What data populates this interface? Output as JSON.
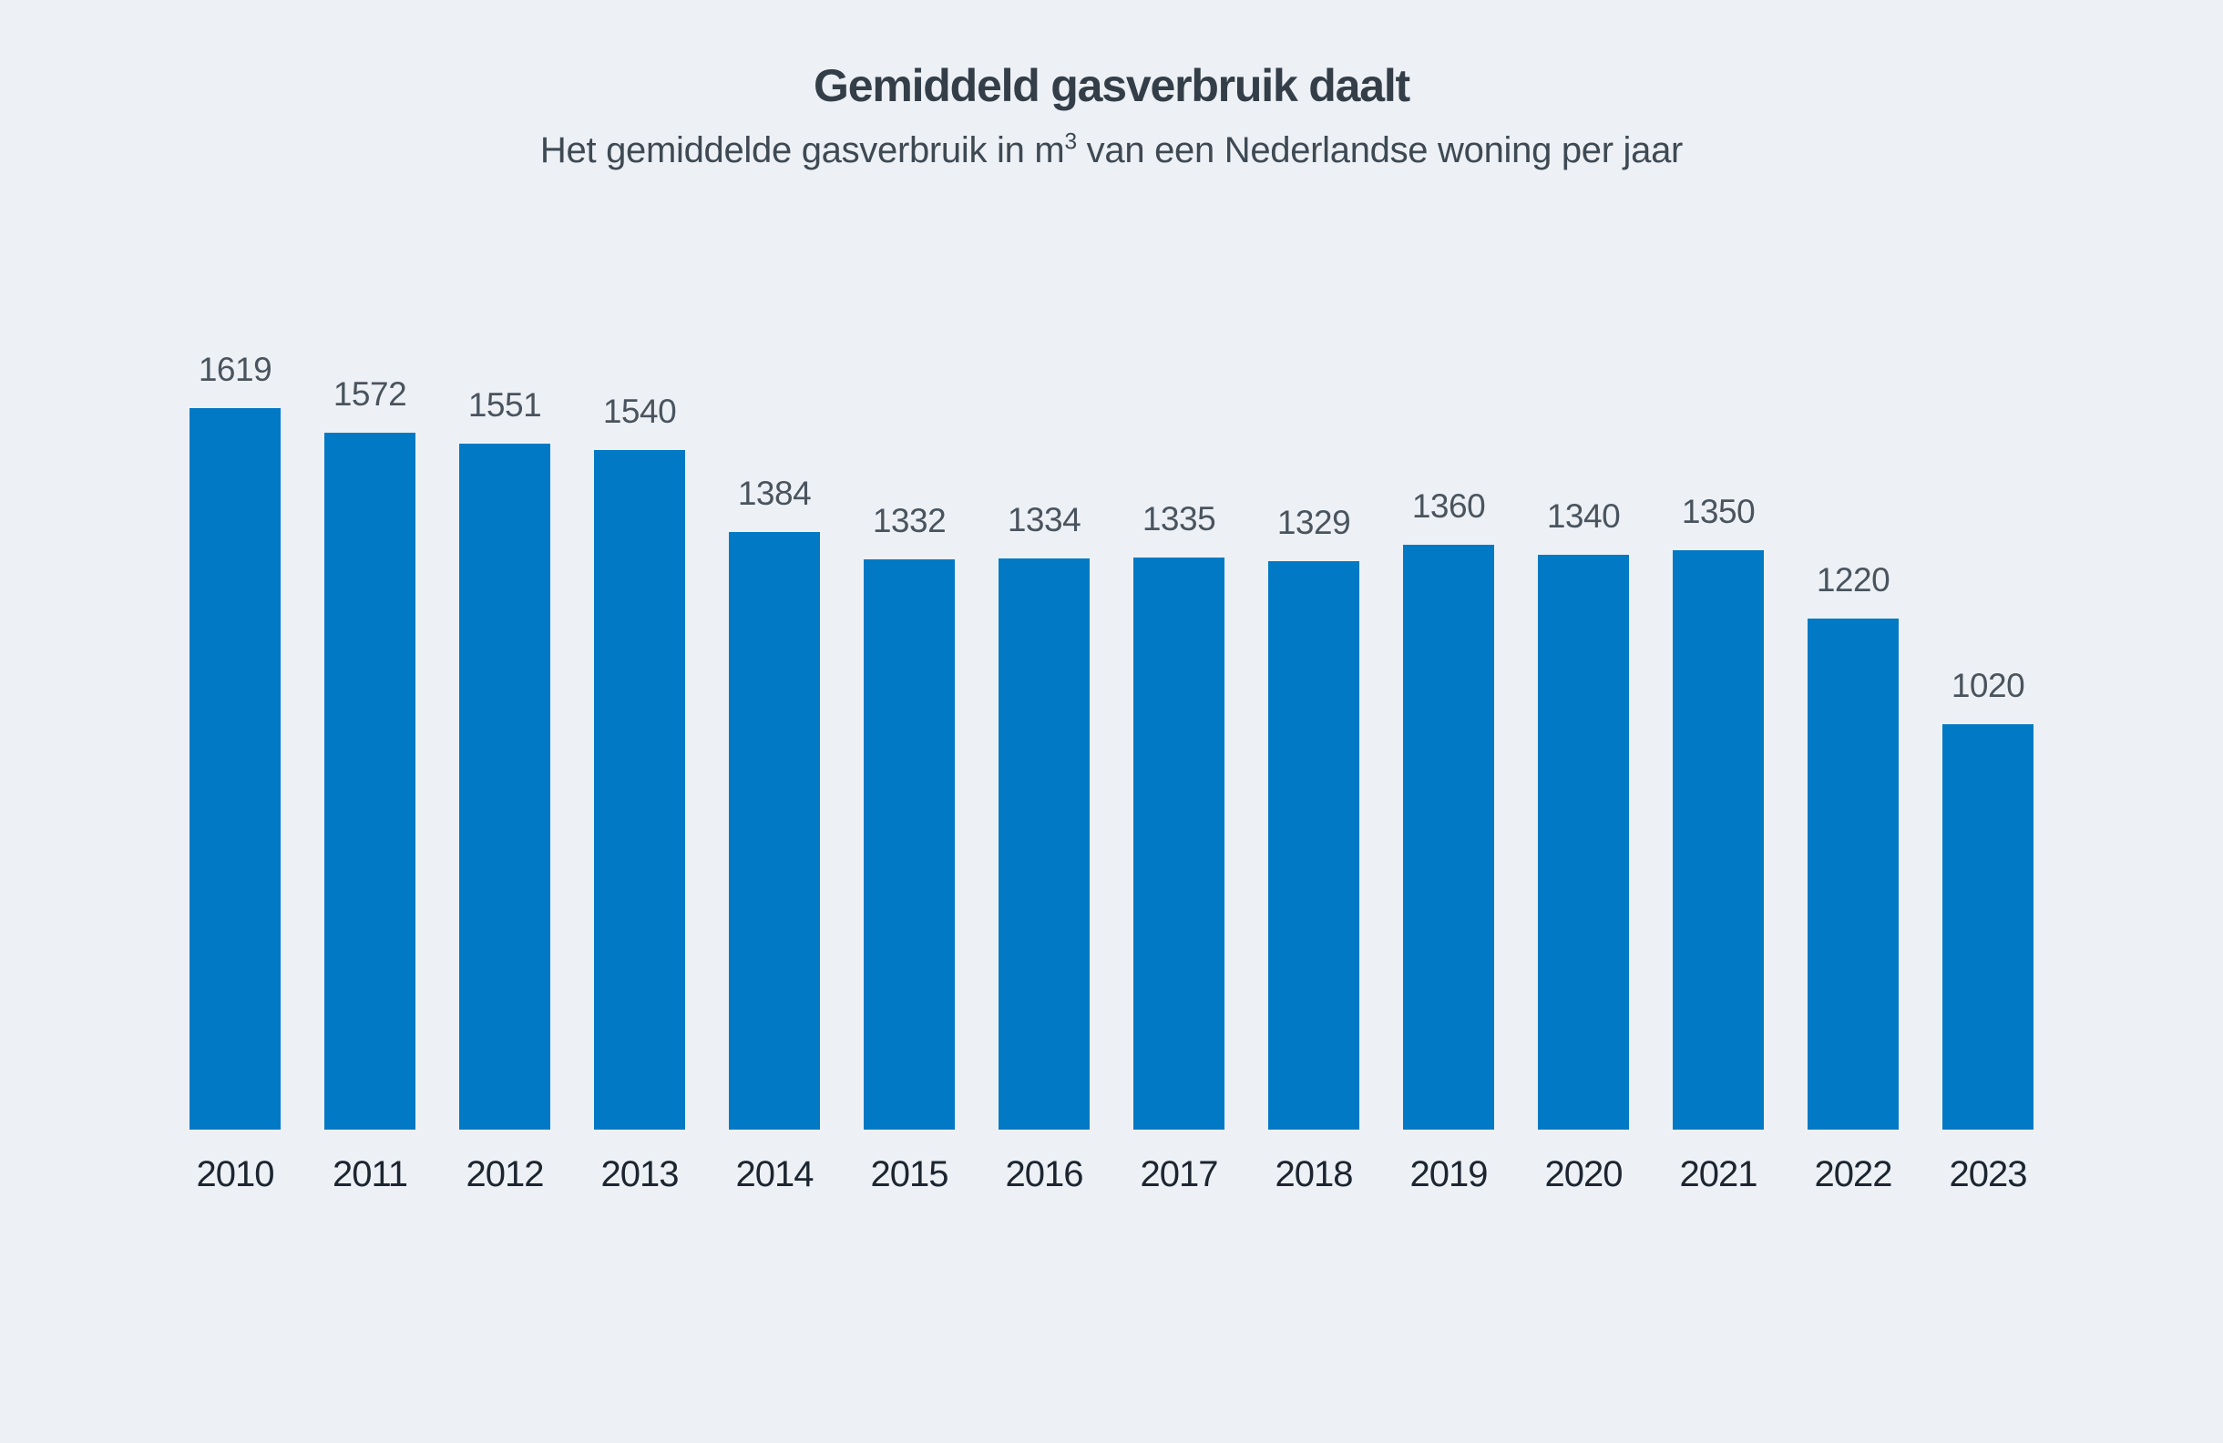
{
  "page": {
    "background": "#edf1f6",
    "title": "Gemiddeld gasverbruik daalt",
    "subtitle_prefix": "Het gemiddelde gasverbruik in m",
    "subtitle_sup": "3",
    "subtitle_suffix": " van een Nederlandse woning per jaar"
  },
  "chart_data": {
    "type": "bar",
    "title": "Gemiddeld gasverbruik daalt",
    "subtitle": "Het gemiddelde gasverbruik in m³ van een Nederlandse woning per jaar",
    "categories": [
      "2010",
      "2011",
      "2012",
      "2013",
      "2014",
      "2015",
      "2016",
      "2017",
      "2018",
      "2019",
      "2020",
      "2021",
      "2022",
      "2023"
    ],
    "values": [
      1619,
      1572,
      1551,
      1540,
      1384,
      1332,
      1334,
      1335,
      1329,
      1360,
      1340,
      1350,
      1220,
      1020
    ],
    "xlabel": "",
    "ylabel": "",
    "ylim": [
      250,
      1650
    ],
    "grid": false,
    "legend": false,
    "data_labels": true,
    "bar_color": "#0279c4",
    "value_label_color": "#4a545e",
    "category_label_color": "#1c2530",
    "title_color": "#333e48",
    "subtitle_color": "#3e4953"
  }
}
